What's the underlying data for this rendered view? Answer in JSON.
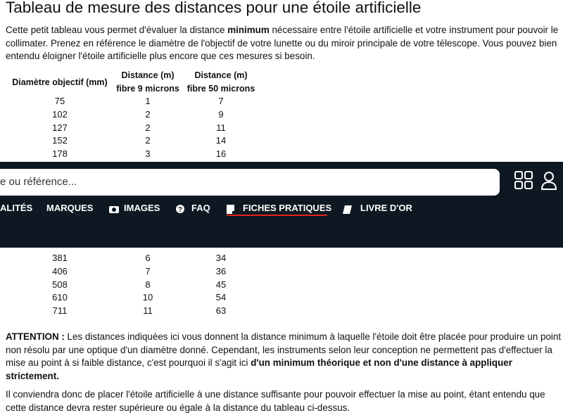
{
  "page": {
    "title": "Tableau de mesure des distances pour une étoile artificielle",
    "intro": [
      {
        "text": "Cette petit tableau vous permet d'évaluer la distance "
      },
      {
        "text": "minimum",
        "bold": true
      },
      {
        "text": " nécessaire entre l'étoile artificielle et votre instrument pour pouvoir le collimater. Prenez en référence le diamètre de l'objectif de votre lunette ou du miroir principale de votre télescope. Vous pouvez bien entendu éloigner l'étoile artificielle plus encore que ces mesures si besoin."
      }
    ],
    "table": {
      "headers": [
        [
          "Diamètre objectif (mm)"
        ],
        [
          "Distance (m)",
          "fibre 9 microns"
        ],
        [
          "Distance (m)",
          "fibre 50 microns"
        ]
      ],
      "rows": [
        [
          75,
          1,
          7
        ],
        [
          102,
          2,
          9
        ],
        [
          127,
          2,
          11
        ],
        [
          152,
          2,
          14
        ],
        [
          178,
          3,
          16
        ],
        [
          381,
          6,
          34
        ],
        [
          406,
          7,
          36
        ],
        [
          508,
          8,
          45
        ],
        [
          610,
          10,
          54
        ],
        [
          711,
          11,
          63
        ]
      ]
    },
    "warning": [
      {
        "text": "ATTENTION :",
        "bold": true
      },
      {
        "text": " Les distances indiquées ici vous donnent la distance minimum à laquelle l'étoile doit être placée pour produire un point non résolu par une optique d'un diamètre donné. Cependant, les instruments selon leur conception ne permettent pas d'effectuer la mise au point à si faible distance, c'est pourquoi il s'agit ici "
      },
      {
        "text": "d'un minimum théorique et non d'une distance à appliquer strictement.",
        "bold": true
      }
    ],
    "conclusion": [
      {
        "text": "Il conviendra donc de placer l'étoile artificielle à une distance suffisante pour pouvoir effectuer la mise au point, étant entendu que cette distance devra rester supérieure ou égale à la distance du tableau ci-dessus."
      }
    ]
  },
  "header": {
    "search_placeholder": "e ou référence...",
    "nav": [
      "ALITÉS",
      "MARQUES",
      "IMAGES",
      "FAQ",
      "FICHES PRATIQUES",
      "LIVRE D'OR"
    ]
  }
}
